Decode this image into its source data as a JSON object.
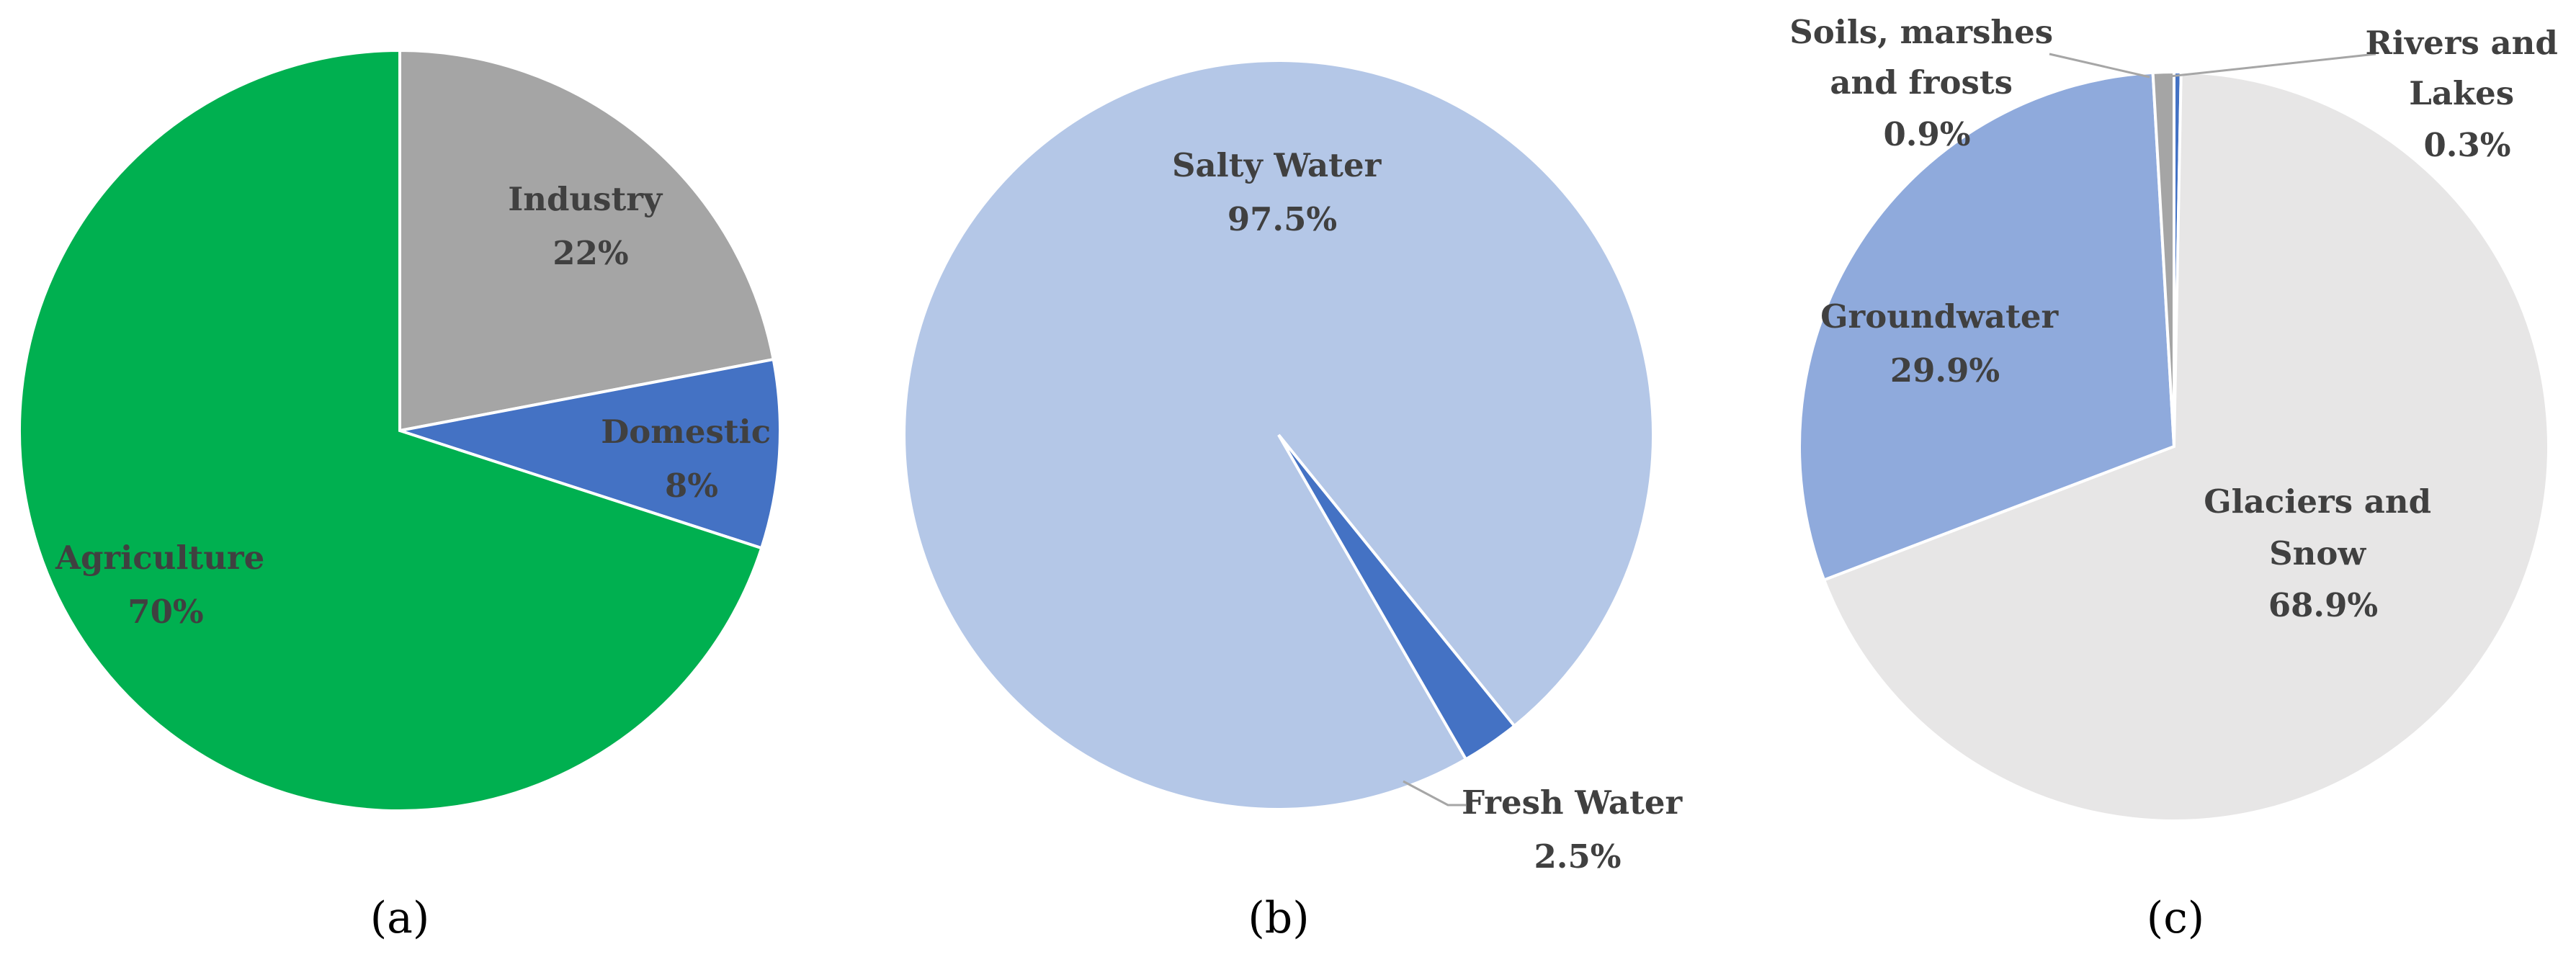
{
  "chart_data": [
    {
      "type": "pie",
      "panel_label": "(a)",
      "slices": [
        {
          "name": "Industry",
          "value": 22,
          "value_label": "22%",
          "color": "#a5a5a5"
        },
        {
          "name": "Domestic",
          "value": 8,
          "value_label": "8%",
          "color": "#4472c4"
        },
        {
          "name": "Agriculture",
          "value": 70,
          "value_label": "70%",
          "color": "#00b050"
        }
      ]
    },
    {
      "type": "pie",
      "panel_label": "(b)",
      "slices": [
        {
          "name": "Salty Water",
          "value": 97.5,
          "value_label": "97.5%",
          "color": "#b4c7e7"
        },
        {
          "name": "Fresh Water",
          "value": 2.5,
          "value_label": "2.5%",
          "color": "#4472c4"
        }
      ]
    },
    {
      "type": "pie",
      "panel_label": "(c)",
      "slices": [
        {
          "name_lines": [
            "Rivers and",
            "Lakes"
          ],
          "value": 0.3,
          "value_label": "0.3%",
          "color": "#4472c4"
        },
        {
          "name_lines": [
            "Glaciers and",
            "Snow"
          ],
          "value": 68.9,
          "value_label": "68.9%",
          "color": "#e7e6e6"
        },
        {
          "name_lines": [
            "Groundwater"
          ],
          "value": 29.9,
          "value_label": "29.9%",
          "color": "#8faadc"
        },
        {
          "name_lines": [
            "Soils, marshes",
            "and frosts"
          ],
          "value": 0.9,
          "value_label": "0.9%",
          "color": "#a5a5a5"
        }
      ]
    }
  ]
}
